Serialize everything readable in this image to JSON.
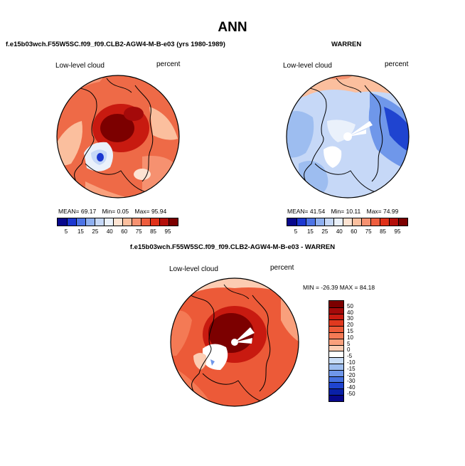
{
  "page": {
    "title": "ANN"
  },
  "chart_data": [
    {
      "type": "heatmap",
      "title": "f.e15b03wch.F55W5SC.f09_f09.CLB2-AGW4-M-B-e03 (yrs 1980-1989)",
      "left_label": "Low-level cloud",
      "right_label": "percent",
      "projection": "north-polar-stereographic",
      "stats": {
        "mean_label": "MEAN=",
        "mean": "69.17",
        "min_label": "Min=",
        "min": "0.05",
        "max_label": "Max=",
        "max": "95.94"
      },
      "colorbar": {
        "orientation": "horizontal",
        "levels": [
          5,
          15,
          25,
          40,
          60,
          75,
          85,
          95
        ],
        "colors": [
          "#08088c",
          "#1c37d0",
          "#4d74e6",
          "#8fb0f0",
          "#c6d8f7",
          "#eaf1fb",
          "#fde3d2",
          "#fbbf9e",
          "#f69170",
          "#ee5d3e",
          "#e03018",
          "#b40f0a",
          "#7c0000"
        ]
      }
    },
    {
      "type": "heatmap",
      "title": "WARREN",
      "left_label": "Low-level cloud",
      "right_label": "percent",
      "projection": "north-polar-stereographic",
      "stats": {
        "mean_label": "MEAN=",
        "mean": "41.54",
        "min_label": "Min=",
        "min": "10.11",
        "max_label": "Max=",
        "max": "74.99"
      },
      "colorbar": {
        "orientation": "horizontal",
        "levels": [
          5,
          15,
          25,
          40,
          60,
          75,
          85,
          95
        ],
        "colors": [
          "#08088c",
          "#1c37d0",
          "#4d74e6",
          "#8fb0f0",
          "#c6d8f7",
          "#eaf1fb",
          "#fde3d2",
          "#fbbf9e",
          "#f69170",
          "#ee5d3e",
          "#e03018",
          "#b40f0a",
          "#7c0000"
        ]
      }
    },
    {
      "type": "heatmap",
      "title": "f.e15b03wch.F55W5SC.f09_f09.CLB2-AGW4-M-B-e03 - WARREN",
      "left_label": "Low-level cloud",
      "right_label": "percent",
      "projection": "north-polar-stereographic",
      "stats_line": "MIN = -26.39 MAX =  84.18",
      "colorbar": {
        "orientation": "vertical",
        "levels": [
          50,
          40,
          30,
          20,
          15,
          10,
          5,
          0,
          -5,
          -10,
          -15,
          -20,
          -30,
          -40,
          -50
        ],
        "colors": [
          "#7c0000",
          "#a40a0a",
          "#c81a10",
          "#e0391f",
          "#ec5a38",
          "#f47a55",
          "#f9a07c",
          "#fcccb2",
          "#ffffff",
          "#c8dcf6",
          "#9dbdf0",
          "#6f97ea",
          "#4470e0",
          "#1f44d0",
          "#0a20a8",
          "#08088c"
        ]
      }
    }
  ]
}
